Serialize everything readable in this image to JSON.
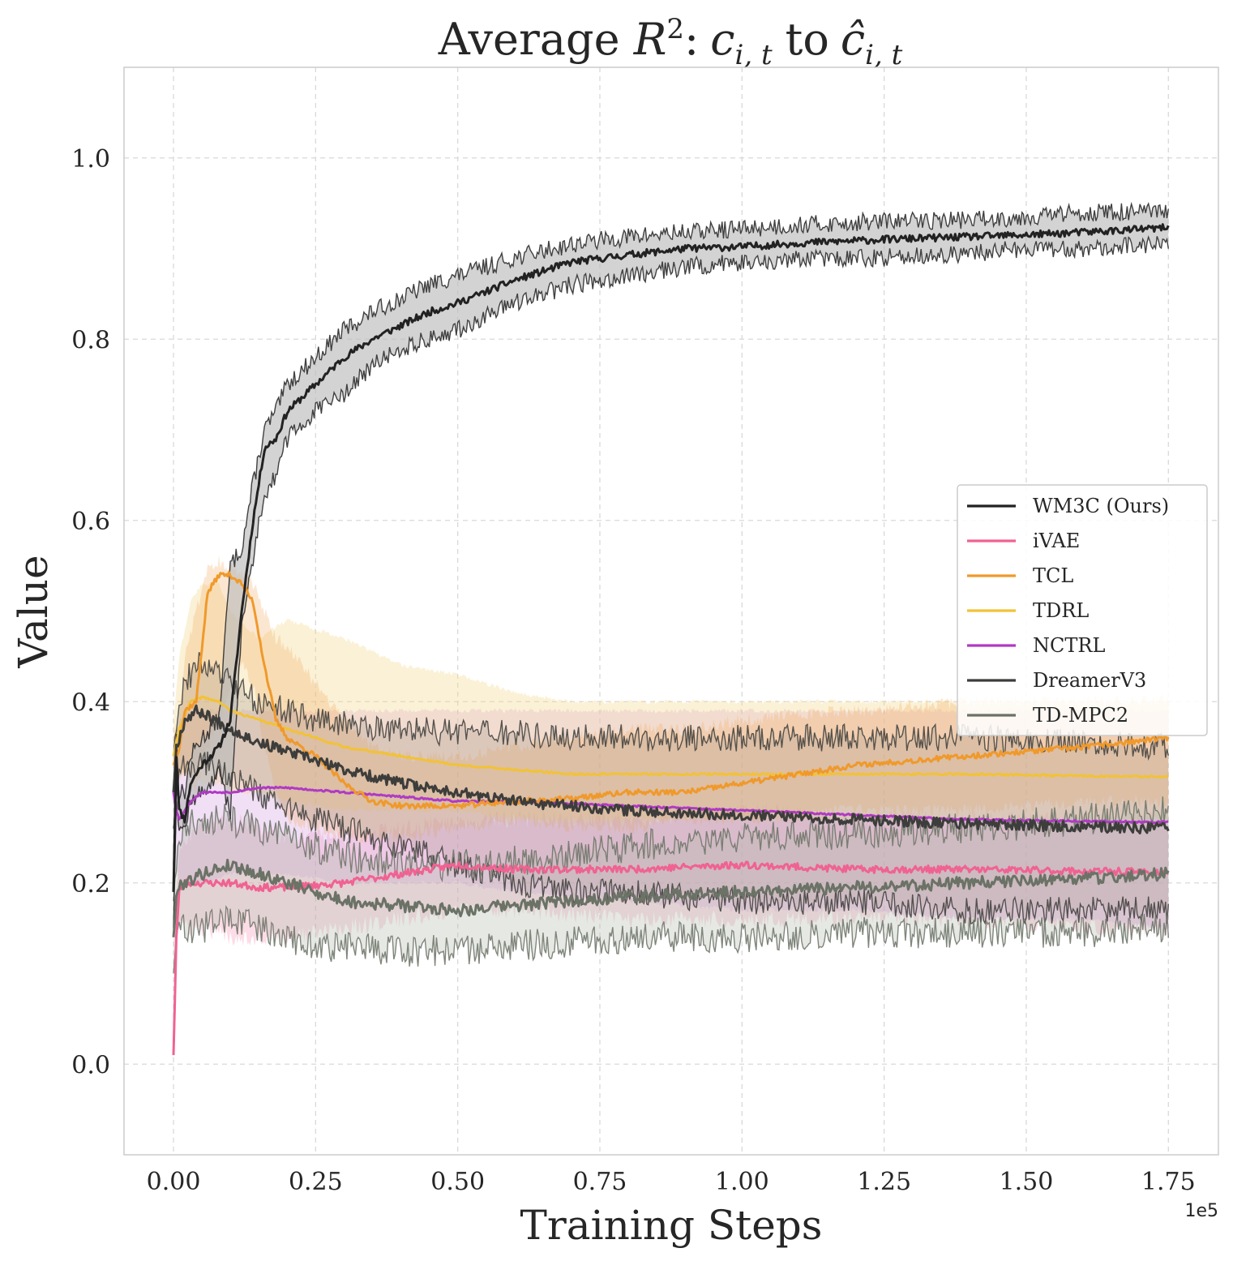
{
  "chart_data": {
    "type": "line",
    "title": {
      "prefix": "Average ",
      "var_R": "R",
      "sup": "2",
      "colon": ":",
      "c": "c",
      "sub": "i, t",
      "to": "to",
      "chat": "ĉ",
      "sub2": "i, t"
    },
    "xlabel": "Training Steps",
    "ylabel": "Value",
    "x_offset_label": "1e5",
    "xlim": [
      -0.087,
      1.838
    ],
    "ylim": [
      -0.1,
      1.1
    ],
    "x_ticks": [
      {
        "value": 0.0,
        "label": "0.00"
      },
      {
        "value": 0.25,
        "label": "0.25"
      },
      {
        "value": 0.5,
        "label": "0.50"
      },
      {
        "value": 0.75,
        "label": "0.75"
      },
      {
        "value": 1.0,
        "label": "1.00"
      },
      {
        "value": 1.25,
        "label": "1.25"
      },
      {
        "value": 1.5,
        "label": "1.50"
      },
      {
        "value": 1.75,
        "label": "1.75"
      }
    ],
    "y_ticks": [
      {
        "value": 0.0,
        "label": "0.0"
      },
      {
        "value": 0.2,
        "label": "0.2"
      },
      {
        "value": 0.4,
        "label": "0.4"
      },
      {
        "value": 0.6,
        "label": "0.6"
      },
      {
        "value": 0.8,
        "label": "0.8"
      },
      {
        "value": 1.0,
        "label": "1.0"
      }
    ],
    "grid": true,
    "legend_position": "center-right",
    "series": [
      {
        "name": "WM3C (Ours)",
        "color": "#222222",
        "band_color": "#bbbbbb",
        "band_opacity": 0.65,
        "noise": 0.004,
        "seed": 11,
        "x": [
          0.0,
          0.005,
          0.01,
          0.02,
          0.03,
          0.05,
          0.08,
          0.1,
          0.12,
          0.14,
          0.16,
          0.18,
          0.2,
          0.25,
          0.3,
          0.35,
          0.4,
          0.45,
          0.5,
          0.6,
          0.7,
          0.8,
          0.9,
          1.0,
          1.1,
          1.25,
          1.4,
          1.5,
          1.6,
          1.75
        ],
        "mean": [
          0.19,
          0.34,
          0.28,
          0.27,
          0.31,
          0.33,
          0.35,
          0.38,
          0.5,
          0.6,
          0.68,
          0.69,
          0.72,
          0.75,
          0.78,
          0.8,
          0.815,
          0.83,
          0.84,
          0.865,
          0.885,
          0.893,
          0.9,
          0.902,
          0.906,
          0.91,
          0.913,
          0.915,
          0.918,
          0.923
        ],
        "lower": [
          0.15,
          0.3,
          0.26,
          0.26,
          0.29,
          0.3,
          0.32,
          0.28,
          0.48,
          0.56,
          0.63,
          0.65,
          0.69,
          0.72,
          0.74,
          0.77,
          0.79,
          0.8,
          0.81,
          0.84,
          0.86,
          0.87,
          0.88,
          0.885,
          0.888,
          0.89,
          0.895,
          0.9,
          0.9,
          0.905
        ],
        "upper": [
          0.22,
          0.36,
          0.3,
          0.3,
          0.34,
          0.36,
          0.38,
          0.55,
          0.57,
          0.64,
          0.7,
          0.72,
          0.75,
          0.78,
          0.81,
          0.83,
          0.845,
          0.86,
          0.87,
          0.89,
          0.905,
          0.913,
          0.918,
          0.922,
          0.926,
          0.93,
          0.932,
          0.935,
          0.94,
          0.94
        ]
      },
      {
        "name": "iVAE",
        "color": "#f06292",
        "band_color": "#f48fb1",
        "band_opacity": 0.3,
        "noise": 0.004,
        "seed": 23,
        "x": [
          0.0,
          0.005,
          0.01,
          0.02,
          0.05,
          0.1,
          0.15,
          0.2,
          0.3,
          0.4,
          0.5,
          0.6,
          0.8,
          1.0,
          1.2,
          1.4,
          1.6,
          1.75
        ],
        "mean": [
          0.01,
          0.14,
          0.19,
          0.2,
          0.2,
          0.2,
          0.195,
          0.195,
          0.2,
          0.21,
          0.22,
          0.215,
          0.215,
          0.22,
          0.215,
          0.215,
          0.213,
          0.212
        ],
        "lower": [
          0.0,
          0.12,
          0.16,
          0.15,
          0.15,
          0.14,
          0.14,
          0.14,
          0.15,
          0.16,
          0.17,
          0.17,
          0.16,
          0.16,
          0.16,
          0.16,
          0.15,
          0.15
        ],
        "upper": [
          0.03,
          0.18,
          0.24,
          0.25,
          0.26,
          0.27,
          0.26,
          0.25,
          0.25,
          0.26,
          0.27,
          0.27,
          0.27,
          0.28,
          0.27,
          0.27,
          0.27,
          0.27
        ]
      },
      {
        "name": "TCL",
        "color": "#f0992b",
        "band_color": "#f2b066",
        "band_opacity": 0.3,
        "noise": 0.003,
        "seed": 37,
        "x": [
          0.0,
          0.01,
          0.02,
          0.04,
          0.06,
          0.08,
          0.1,
          0.12,
          0.14,
          0.16,
          0.18,
          0.2,
          0.25,
          0.3,
          0.35,
          0.4,
          0.5,
          0.6,
          0.7,
          0.8,
          0.9,
          1.0,
          1.2,
          1.4,
          1.6,
          1.75
        ],
        "mean": [
          0.33,
          0.35,
          0.39,
          0.4,
          0.52,
          0.54,
          0.54,
          0.53,
          0.51,
          0.44,
          0.38,
          0.36,
          0.34,
          0.31,
          0.29,
          0.285,
          0.285,
          0.29,
          0.293,
          0.3,
          0.3,
          0.31,
          0.33,
          0.34,
          0.35,
          0.36
        ],
        "lower": [
          0.3,
          0.32,
          0.32,
          0.3,
          0.35,
          0.38,
          0.42,
          0.44,
          0.42,
          0.35,
          0.3,
          0.27,
          0.26,
          0.25,
          0.25,
          0.25,
          0.26,
          0.27,
          0.26,
          0.26,
          0.27,
          0.27,
          0.28,
          0.28,
          0.29,
          0.29
        ],
        "upper": [
          0.36,
          0.38,
          0.45,
          0.5,
          0.55,
          0.555,
          0.55,
          0.54,
          0.53,
          0.5,
          0.47,
          0.46,
          0.42,
          0.38,
          0.35,
          0.34,
          0.34,
          0.35,
          0.36,
          0.37,
          0.37,
          0.38,
          0.39,
          0.4,
          0.4,
          0.4
        ]
      },
      {
        "name": "TDRL",
        "color": "#f2c237",
        "band_color": "#f4d88a",
        "band_opacity": 0.35,
        "noise": 0.001,
        "seed": 41,
        "x": [
          0.0,
          0.01,
          0.03,
          0.05,
          0.08,
          0.1,
          0.15,
          0.2,
          0.3,
          0.4,
          0.5,
          0.6,
          0.7,
          0.8,
          1.0,
          1.2,
          1.4,
          1.6,
          1.75
        ],
        "mean": [
          0.34,
          0.37,
          0.4,
          0.405,
          0.4,
          0.39,
          0.38,
          0.37,
          0.35,
          0.34,
          0.33,
          0.325,
          0.32,
          0.32,
          0.32,
          0.32,
          0.32,
          0.318,
          0.317
        ],
        "lower": [
          0.3,
          0.32,
          0.32,
          0.31,
          0.31,
          0.3,
          0.3,
          0.29,
          0.28,
          0.28,
          0.28,
          0.27,
          0.27,
          0.27,
          0.27,
          0.27,
          0.27,
          0.27,
          0.27
        ],
        "upper": [
          0.38,
          0.45,
          0.51,
          0.53,
          0.53,
          0.5,
          0.47,
          0.49,
          0.47,
          0.44,
          0.43,
          0.41,
          0.4,
          0.4,
          0.4,
          0.4,
          0.4,
          0.4,
          0.4
        ]
      },
      {
        "name": "NCTRL",
        "color": "#b03ac4",
        "band_color": "#d7a3e3",
        "band_opacity": 0.35,
        "noise": 0.001,
        "seed": 53,
        "x": [
          0.0,
          0.005,
          0.01,
          0.03,
          0.05,
          0.1,
          0.15,
          0.2,
          0.3,
          0.4,
          0.5,
          0.6,
          0.8,
          1.0,
          1.2,
          1.4,
          1.6,
          1.75
        ],
        "mean": [
          0.3,
          0.28,
          0.27,
          0.29,
          0.3,
          0.3,
          0.305,
          0.305,
          0.3,
          0.295,
          0.29,
          0.29,
          0.285,
          0.28,
          0.275,
          0.27,
          0.268,
          0.267
        ],
        "lower": [
          0.26,
          0.22,
          0.2,
          0.2,
          0.2,
          0.21,
          0.21,
          0.21,
          0.2,
          0.2,
          0.2,
          0.19,
          0.18,
          0.17,
          0.17,
          0.16,
          0.16,
          0.15
        ],
        "upper": [
          0.34,
          0.36,
          0.38,
          0.39,
          0.39,
          0.39,
          0.39,
          0.39,
          0.39,
          0.39,
          0.39,
          0.39,
          0.39,
          0.39,
          0.39,
          0.39,
          0.39,
          0.39
        ]
      },
      {
        "name": "DreamerV3",
        "color": "#3d3d3b",
        "band_color": "#a89a8e",
        "band_opacity": 0.3,
        "noise": 0.006,
        "seed": 67,
        "x": [
          0.0,
          0.005,
          0.01,
          0.02,
          0.04,
          0.06,
          0.1,
          0.15,
          0.2,
          0.25,
          0.3,
          0.4,
          0.5,
          0.6,
          0.7,
          0.8,
          1.0,
          1.2,
          1.4,
          1.6,
          1.75
        ],
        "mean": [
          0.3,
          0.35,
          0.36,
          0.38,
          0.39,
          0.385,
          0.37,
          0.355,
          0.345,
          0.335,
          0.325,
          0.31,
          0.3,
          0.29,
          0.285,
          0.28,
          0.275,
          0.27,
          0.265,
          0.262,
          0.26
        ],
        "lower": [
          0.26,
          0.3,
          0.32,
          0.33,
          0.33,
          0.33,
          0.32,
          0.3,
          0.28,
          0.27,
          0.26,
          0.24,
          0.22,
          0.2,
          0.19,
          0.19,
          0.18,
          0.18,
          0.17,
          0.17,
          0.17
        ],
        "upper": [
          0.34,
          0.38,
          0.4,
          0.42,
          0.44,
          0.44,
          0.42,
          0.4,
          0.39,
          0.38,
          0.375,
          0.37,
          0.365,
          0.365,
          0.36,
          0.36,
          0.36,
          0.36,
          0.36,
          0.355,
          0.35
        ]
      },
      {
        "name": "TD-MPC2",
        "color": "#6b7266",
        "band_color": "#b5bdb0",
        "band_opacity": 0.35,
        "noise": 0.007,
        "seed": 79,
        "x": [
          0.0,
          0.005,
          0.01,
          0.02,
          0.05,
          0.1,
          0.15,
          0.2,
          0.25,
          0.3,
          0.4,
          0.5,
          0.6,
          0.7,
          0.8,
          1.0,
          1.2,
          1.4,
          1.6,
          1.75
        ],
        "mean": [
          0.14,
          0.18,
          0.2,
          0.2,
          0.21,
          0.22,
          0.21,
          0.2,
          0.19,
          0.18,
          0.175,
          0.17,
          0.175,
          0.18,
          0.185,
          0.19,
          0.195,
          0.2,
          0.205,
          0.21
        ],
        "lower": [
          0.1,
          0.14,
          0.15,
          0.15,
          0.15,
          0.16,
          0.15,
          0.14,
          0.13,
          0.13,
          0.125,
          0.125,
          0.13,
          0.135,
          0.14,
          0.14,
          0.145,
          0.145,
          0.145,
          0.15
        ],
        "upper": [
          0.18,
          0.22,
          0.25,
          0.26,
          0.27,
          0.27,
          0.26,
          0.25,
          0.24,
          0.23,
          0.22,
          0.22,
          0.225,
          0.23,
          0.24,
          0.25,
          0.255,
          0.26,
          0.27,
          0.28
        ]
      }
    ]
  }
}
